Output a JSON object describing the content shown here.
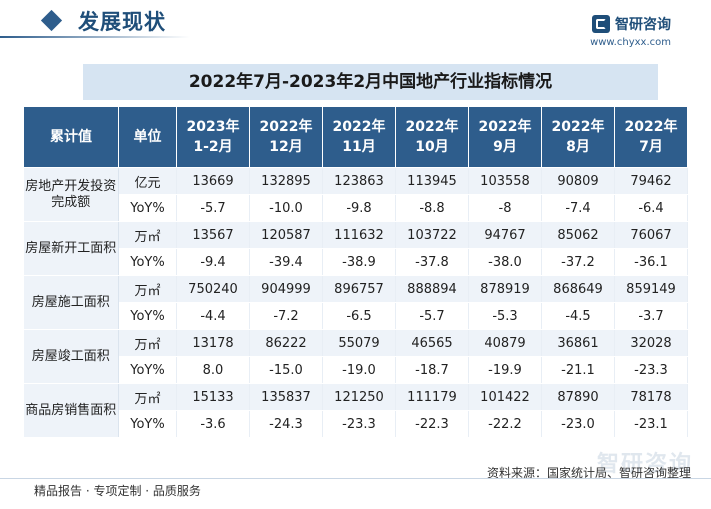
{
  "header": {
    "section_title": "发展现状",
    "brand_name": "智研咨询",
    "brand_url": "www.chyxx.com"
  },
  "table": {
    "title": "2022年7月-2023年2月中国地产行业指标情况",
    "headers": [
      "累计值",
      "单位",
      "2023年\n1-2月",
      "2022年\n12月",
      "2022年\n11月",
      "2022年\n10月",
      "2022年\n9月",
      "2022年\n8月",
      "2022年\n7月"
    ],
    "groups": [
      {
        "label": "房地产开发投资完成额",
        "rows": [
          {
            "unit": "亿元",
            "values": [
              "13669",
              "132895",
              "123863",
              "113945",
              "103558",
              "90809",
              "79462"
            ]
          },
          {
            "unit": "YoY%",
            "values": [
              "-5.7",
              "-10.0",
              "-9.8",
              "-8.8",
              "-8",
              "-7.4",
              "-6.4"
            ]
          }
        ]
      },
      {
        "label": "房屋新开工面积",
        "rows": [
          {
            "unit": "万㎡",
            "values": [
              "13567",
              "120587",
              "111632",
              "103722",
              "94767",
              "85062",
              "76067"
            ]
          },
          {
            "unit": "YoY%",
            "values": [
              "-9.4",
              "-39.4",
              "-38.9",
              "-37.8",
              "-38.0",
              "-37.2",
              "-36.1"
            ]
          }
        ]
      },
      {
        "label": "房屋施工面积",
        "rows": [
          {
            "unit": "万㎡",
            "values": [
              "750240",
              "904999",
              "896757",
              "888894",
              "878919",
              "868649",
              "859149"
            ]
          },
          {
            "unit": "YoY%",
            "values": [
              "-4.4",
              "-7.2",
              "-6.5",
              "-5.7",
              "-5.3",
              "-4.5",
              "-3.7"
            ]
          }
        ]
      },
      {
        "label": "房屋竣工面积",
        "rows": [
          {
            "unit": "万㎡",
            "values": [
              "13178",
              "86222",
              "55079",
              "46565",
              "40879",
              "36861",
              "32028"
            ]
          },
          {
            "unit": "YoY%",
            "values": [
              "8.0",
              "-15.0",
              "-19.0",
              "-18.7",
              "-19.9",
              "-21.1",
              "-23.3"
            ]
          }
        ]
      },
      {
        "label": "商品房销售面积",
        "rows": [
          {
            "unit": "万㎡",
            "values": [
              "15133",
              "135837",
              "121250",
              "111179",
              "101422",
              "87890",
              "78178"
            ]
          },
          {
            "unit": "YoY%",
            "values": [
              "-3.6",
              "-24.3",
              "-23.3",
              "-22.3",
              "-22.2",
              "-23.0",
              "-23.1"
            ]
          }
        ]
      }
    ]
  },
  "footer": {
    "source": "资料来源：国家统计局、智研咨询整理",
    "slogan": "精品报告 · 专项定制 · 品质服务",
    "watermark": "智研咨询"
  },
  "colors": {
    "header_bg": "#2e5d8c",
    "stripe": "#eef3f9",
    "title_band": "#d6e4f2"
  }
}
